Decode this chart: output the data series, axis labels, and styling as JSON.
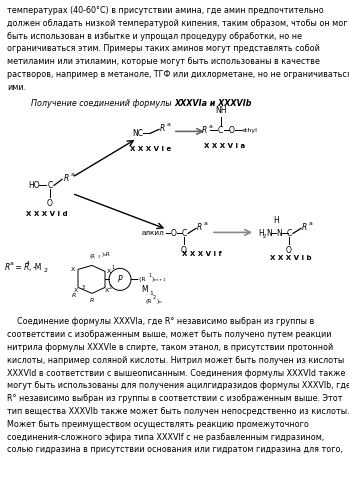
{
  "bg_color": "#ffffff",
  "fig_width": 3.49,
  "fig_height": 5.0,
  "dpi": 100,
  "top_text": [
    "температурах (40-60°C) в присутствии амина, где амин предпочтительно",
    "должен обладать низкой температурой кипения, таким образом, чтобы он мог",
    "быть использован в избытке и упрощал процедуру обработки, но не",
    "ограничиваться этим. Примеры таких аминов могут представлять собой",
    "метиламин или этиламин, которые могут быть использованы в качестве",
    "растворов, например в метаноле, ТГФ или дихлорметане, но не ограничиваться",
    "ими."
  ],
  "scheme_title_plain": "Получение соединений формулы ",
  "scheme_title_bold": "XXXVIa",
  "scheme_title_mid": " и ",
  "scheme_title_bold2": "XXXVIb",
  "bottom_text": [
    "    Соединение формулы XXXVIa, где R° независимо выбран из группы в",
    "соответствии с изображенным выше, может быть получено путем реакции",
    "нитрила формулы XXXVIe в спирте, таком этанол, в присутствии протонной",
    "кислоты, например соляной кислоты. Нитрил может быть получен из кислоты",
    "XXXVId в соответствии с вышеописанным. Соединения формулы XXXVId также",
    "могут быть использованы для получения ацилгидразидов формулы XXXVIb, где",
    "R° независимо выбран из группы в соответствии с изображенным выше. Этот",
    "тип вещества XXXVIb также может быть получен непосредственно из кислоты.",
    "Может быть преимуществом осуществлять реакцию промежуточного",
    "соединения-сложного эфира типа XXXVIf с не разбавленным гидразином,",
    "солью гидразина в присутствии основания или гидратом гидразина для того,"
  ]
}
